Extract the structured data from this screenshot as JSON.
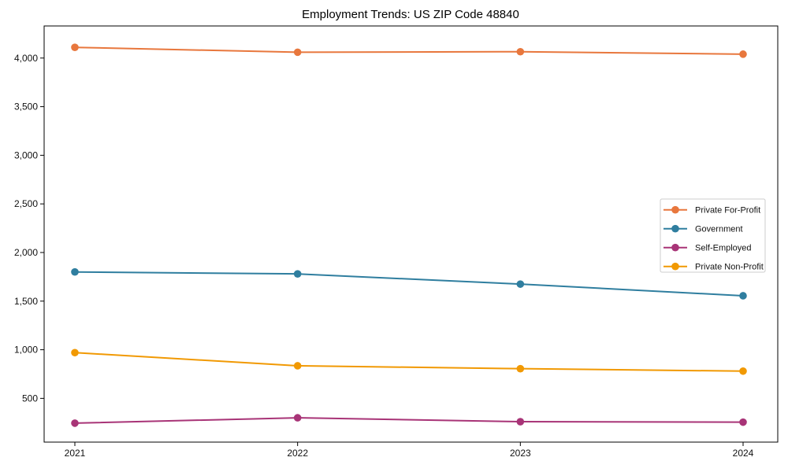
{
  "chart_data": {
    "type": "line",
    "title": "Employment Trends: US ZIP Code 48840",
    "categories": [
      "2021",
      "2022",
      "2023",
      "2024"
    ],
    "series": [
      {
        "name": "Private For-Profit",
        "color": "#e8773d",
        "values": [
          4110,
          4060,
          4065,
          4040
        ]
      },
      {
        "name": "Government",
        "color": "#2f7e9f",
        "values": [
          1800,
          1780,
          1675,
          1555
        ]
      },
      {
        "name": "Self-Employed",
        "color": "#a83477",
        "values": [
          245,
          300,
          260,
          255
        ]
      },
      {
        "name": "Private Non-Profit",
        "color": "#f19903",
        "values": [
          970,
          835,
          805,
          780
        ]
      }
    ],
    "xlabel": "",
    "ylabel": "",
    "yticks": [
      500,
      1000,
      1500,
      2000,
      2500,
      3000,
      3500,
      4000
    ],
    "ytick_labels": [
      "500",
      "1,000",
      "1,500",
      "2,000",
      "2,500",
      "3,000",
      "3,500",
      "4,000"
    ],
    "ylim": [
      50,
      4330
    ],
    "grid": false,
    "legend_position": "center right",
    "marker": "circle",
    "axis_color": "#000000",
    "legend_border_color": "#cccccc"
  }
}
